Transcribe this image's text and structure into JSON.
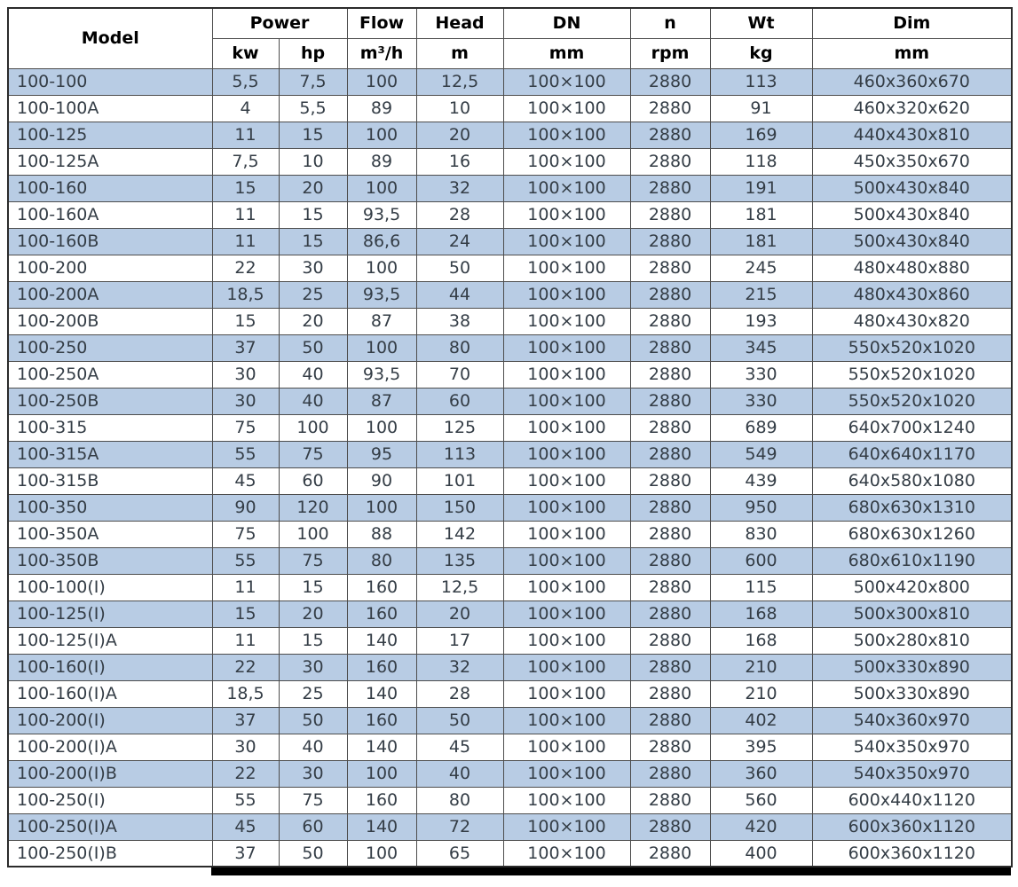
{
  "table": {
    "headers": {
      "model": "Model",
      "power": "Power",
      "kw": "kw",
      "hp": "hp",
      "flow": "Flow",
      "flow_unit": "m³/h",
      "head": "Head",
      "head_unit": "m",
      "dn": "DN",
      "dn_unit": "mm",
      "n": "n",
      "n_unit": "rpm",
      "wt": "Wt",
      "wt_unit": "kg",
      "dim": "Dim",
      "dim_unit": "mm"
    }
  },
  "colors": {
    "row_highlight": "#b8cce4",
    "row_base": "#ffffff",
    "border": "#4d4d4d",
    "header_text": "#000000",
    "cell_text": "#343d46"
  },
  "chart_data": {
    "type": "table",
    "title": "",
    "columns": [
      "Model",
      "Power kw",
      "Power hp",
      "Flow m³/h",
      "Head m",
      "DN mm",
      "n rpm",
      "Wt kg",
      "Dim mm"
    ],
    "rows": [
      [
        "100-100",
        "5,5",
        "7,5",
        "100",
        "12,5",
        "100×100",
        "2880",
        "113",
        "460x360x670"
      ],
      [
        "100-100A",
        "4",
        "5,5",
        "89",
        "10",
        "100×100",
        "2880",
        "91",
        "460x320x620"
      ],
      [
        "100-125",
        "11",
        "15",
        "100",
        "20",
        "100×100",
        "2880",
        "169",
        "440x430x810"
      ],
      [
        "100-125A",
        "7,5",
        "10",
        "89",
        "16",
        "100×100",
        "2880",
        "118",
        "450x350x670"
      ],
      [
        "100-160",
        "15",
        "20",
        "100",
        "32",
        "100×100",
        "2880",
        "191",
        "500x430x840"
      ],
      [
        "100-160A",
        "11",
        "15",
        "93,5",
        "28",
        "100×100",
        "2880",
        "181",
        "500x430x840"
      ],
      [
        "100-160B",
        "11",
        "15",
        "86,6",
        "24",
        "100×100",
        "2880",
        "181",
        "500x430x840"
      ],
      [
        "100-200",
        "22",
        "30",
        "100",
        "50",
        "100×100",
        "2880",
        "245",
        "480x480x880"
      ],
      [
        "100-200A",
        "18,5",
        "25",
        "93,5",
        "44",
        "100×100",
        "2880",
        "215",
        "480x430x860"
      ],
      [
        "100-200B",
        "15",
        "20",
        "87",
        "38",
        "100×100",
        "2880",
        "193",
        "480x430x820"
      ],
      [
        "100-250",
        "37",
        "50",
        "100",
        "80",
        "100×100",
        "2880",
        "345",
        "550x520x1020"
      ],
      [
        "100-250A",
        "30",
        "40",
        "93,5",
        "70",
        "100×100",
        "2880",
        "330",
        "550x520x1020"
      ],
      [
        "100-250B",
        "30",
        "40",
        "87",
        "60",
        "100×100",
        "2880",
        "330",
        "550x520x1020"
      ],
      [
        "100-315",
        "75",
        "100",
        "100",
        "125",
        "100×100",
        "2880",
        "689",
        "640x700x1240"
      ],
      [
        "100-315A",
        "55",
        "75",
        "95",
        "113",
        "100×100",
        "2880",
        "549",
        "640x640x1170"
      ],
      [
        "100-315B",
        "45",
        "60",
        "90",
        "101",
        "100×100",
        "2880",
        "439",
        "640x580x1080"
      ],
      [
        "100-350",
        "90",
        "120",
        "100",
        "150",
        "100×100",
        "2880",
        "950",
        "680x630x1310"
      ],
      [
        "100-350A",
        "75",
        "100",
        "88",
        "142",
        "100×100",
        "2880",
        "830",
        "680x630x1260"
      ],
      [
        "100-350B",
        "55",
        "75",
        "80",
        "135",
        "100×100",
        "2880",
        "600",
        "680x610x1190"
      ],
      [
        "100-100(I)",
        "11",
        "15",
        "160",
        "12,5",
        "100×100",
        "2880",
        "115",
        "500x420x800"
      ],
      [
        "100-125(I)",
        "15",
        "20",
        "160",
        "20",
        "100×100",
        "2880",
        "168",
        "500x300x810"
      ],
      [
        "100-125(I)A",
        "11",
        "15",
        "140",
        "17",
        "100×100",
        "2880",
        "168",
        "500x280x810"
      ],
      [
        "100-160(I)",
        "22",
        "30",
        "160",
        "32",
        "100×100",
        "2880",
        "210",
        "500x330x890"
      ],
      [
        "100-160(I)A",
        "18,5",
        "25",
        "140",
        "28",
        "100×100",
        "2880",
        "210",
        "500x330x890"
      ],
      [
        "100-200(I)",
        "37",
        "50",
        "160",
        "50",
        "100×100",
        "2880",
        "402",
        "540x360x970"
      ],
      [
        "100-200(I)A",
        "30",
        "40",
        "140",
        "45",
        "100×100",
        "2880",
        "395",
        "540x350x970"
      ],
      [
        "100-200(I)B",
        "22",
        "30",
        "100",
        "40",
        "100×100",
        "2880",
        "360",
        "540x350x970"
      ],
      [
        "100-250(I)",
        "55",
        "75",
        "160",
        "80",
        "100×100",
        "2880",
        "560",
        "600x440x1120"
      ],
      [
        "100-250(I)A",
        "45",
        "60",
        "140",
        "72",
        "100×100",
        "2880",
        "420",
        "600x360x1120"
      ],
      [
        "100-250(I)B",
        "37",
        "50",
        "100",
        "65",
        "100×100",
        "2880",
        "400",
        "600x360x1120"
      ]
    ]
  }
}
